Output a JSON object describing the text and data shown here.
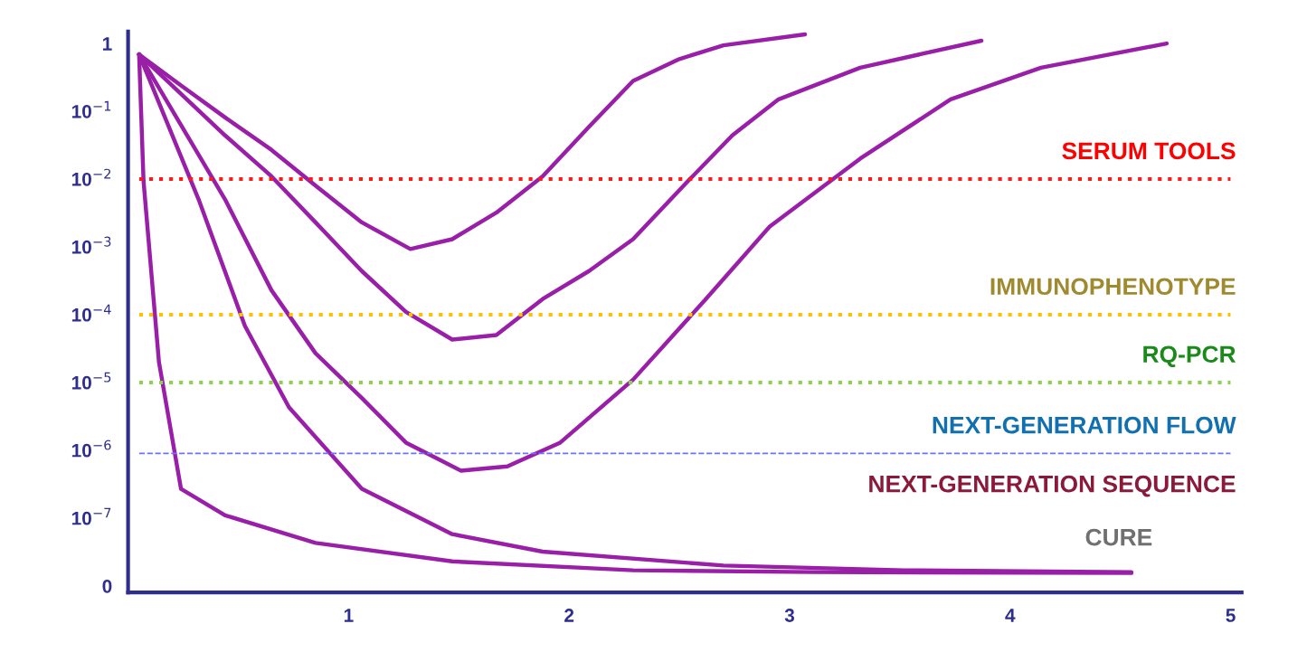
{
  "chart_data": {
    "type": "line",
    "xlim": [
      0,
      5.05
    ],
    "xticks": [
      1,
      2,
      3,
      4,
      5
    ],
    "log": "y",
    "ylim": [
      8e-09,
      1.5
    ],
    "yticks": [
      {
        "value": 1e-08,
        "label": "0"
      },
      {
        "value": 1e-07,
        "label": "10$^{−7}$"
      },
      {
        "value": 1e-06,
        "label": "10$^{−6}$"
      },
      {
        "value": 1e-05,
        "label": "10$^{−5}$"
      },
      {
        "value": 0.0001,
        "label": "10$^{−4}$"
      },
      {
        "value": 0.001,
        "label": "10$^{−3}$"
      },
      {
        "value": 0.01,
        "label": "10$^{−2}$"
      },
      {
        "value": 0.1,
        "label": "10$^{−1}$"
      },
      1
    ],
    "grid": false,
    "marker": "none",
    "line_style": "solid",
    "series": [
      {
        "color": "#9a1fa8",
        "x": [
          0.05,
          0.24,
          0.44,
          0.65,
          0.85,
          1.06,
          1.28,
          1.47,
          1.67,
          1.88,
          2.09,
          2.29,
          2.5,
          2.7,
          3.07
        ],
        "values": [
          0.69,
          0.24,
          0.081,
          0.027,
          0.008,
          0.0023,
          0.00093,
          0.0013,
          0.0032,
          0.011,
          0.059,
          0.28,
          0.59,
          0.94,
          1.36
        ]
      },
      {
        "color": "#9a1fa8",
        "x": [
          0.05,
          0.44,
          0.65,
          0.85,
          1.06,
          1.26,
          1.47,
          1.67,
          1.88,
          2.09,
          2.29,
          2.54,
          2.74,
          2.95,
          3.32,
          3.87
        ],
        "values": [
          0.69,
          0.044,
          0.011,
          0.0023,
          0.00044,
          0.00011,
          4.3e-05,
          5e-05,
          0.00017,
          0.00044,
          0.0013,
          0.0094,
          0.044,
          0.15,
          0.44,
          1.1
        ]
      },
      {
        "color": "#9a1fa8",
        "x": [
          0.05,
          0.44,
          0.65,
          0.85,
          1.06,
          1.26,
          1.51,
          1.72,
          1.96,
          2.29,
          2.62,
          2.91,
          3.32,
          3.73,
          4.14,
          4.71
        ],
        "values": [
          0.69,
          0.005,
          0.00023,
          2.7e-05,
          5.9e-06,
          1.3e-06,
          5e-07,
          5.8e-07,
          1.3e-06,
          1.1e-05,
          0.00017,
          0.002,
          0.02,
          0.15,
          0.44,
          1.0
        ]
      },
      {
        "color": "#9a1fa8",
        "x": [
          0.05,
          0.32,
          0.53,
          0.73,
          1.06,
          1.47,
          1.88,
          2.7,
          3.52,
          4.55
        ],
        "values": [
          0.69,
          0.005,
          6.8e-05,
          4.3e-06,
          2.7e-07,
          5.8e-08,
          3.2e-08,
          2e-08,
          1.7e-08,
          1.6e-08
        ]
      },
      {
        "color": "#9a1fa8",
        "x": [
          0.05,
          0.07,
          0.14,
          0.24,
          0.44,
          0.85,
          1.47,
          2.29,
          3.11,
          4.55
        ],
        "values": [
          0.69,
          0.0094,
          2e-05,
          2.7e-07,
          1.1e-07,
          4.3e-08,
          2.3e-08,
          1.7e-08,
          1.6e-08,
          1.55e-08
        ]
      }
    ],
    "ref_lines": [
      {
        "axis": "y",
        "value": 0.01,
        "label": "SERUM TOOLS",
        "color": "#ff1a1a",
        "line_style": "dotted"
      },
      {
        "axis": "y",
        "value": 0.0001,
        "label": "IMMUNOPHENOTYPE",
        "color": "#ffc000",
        "line_style": "dotted"
      },
      {
        "axis": "y",
        "value": 1e-05,
        "label": "RQ-PCR",
        "color": "#8fd050",
        "line_style": "dotted"
      },
      {
        "axis": "y",
        "value": 9e-07,
        "label": "NEXT-GENERATION FLOW",
        "color": "#7070ff",
        "line_style": "dashed"
      }
    ],
    "annotations": [
      "NEXT-GENERATION SEQUENCE",
      "CURE"
    ]
  }
}
